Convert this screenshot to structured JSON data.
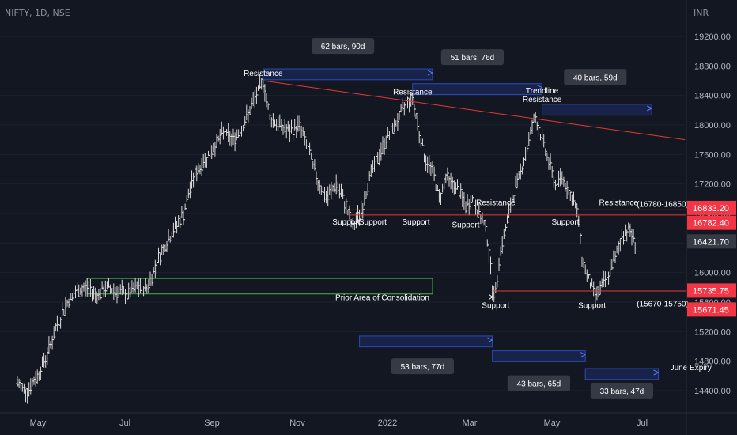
{
  "symbol": "NIFTY, 1D, NSE",
  "currency": "INR",
  "colors": {
    "background": "#131722",
    "axis_text": "#b2b5be",
    "bar": "#d9d9d9",
    "trendline": "#e53935",
    "level_line": "#e53935",
    "consolidation": "#4caf50",
    "range_box": "#2a3a8c",
    "price_tag_red": "#f23645",
    "price_tag_gray": "#363a45"
  },
  "chart_data": {
    "type": "ohlc",
    "ylim": [
      14100,
      19500
    ],
    "y_ticks": [
      "19200.00",
      "18800.00",
      "18400.00",
      "18000.00",
      "17600.00",
      "17200.00",
      "16800.00",
      "16400.00",
      "16000.00",
      "15600.00",
      "15200.00",
      "14800.00",
      "14400.00"
    ],
    "x_ticks": [
      "May",
      "Jul",
      "Sep",
      "Nov",
      "2022",
      "Mar",
      "May",
      "Jul"
    ],
    "price_path": [
      [
        0,
        14500
      ],
      [
        3,
        14400
      ],
      [
        6,
        14600
      ],
      [
        9,
        14900
      ],
      [
        12,
        15300
      ],
      [
        15,
        15600
      ],
      [
        18,
        15750
      ],
      [
        21,
        15800
      ],
      [
        24,
        15700
      ],
      [
        27,
        15800
      ],
      [
        30,
        15750
      ],
      [
        33,
        15700
      ],
      [
        36,
        15800
      ],
      [
        39,
        15800
      ],
      [
        40,
        15900
      ],
      [
        43,
        16250
      ],
      [
        46,
        16500
      ],
      [
        50,
        16800
      ],
      [
        53,
        17300
      ],
      [
        56,
        17500
      ],
      [
        59,
        17700
      ],
      [
        62,
        17900
      ],
      [
        65,
        17800
      ],
      [
        68,
        18000
      ],
      [
        70,
        18200
      ],
      [
        73,
        18500
      ],
      [
        74,
        18600
      ],
      [
        76,
        18100
      ],
      [
        79,
        18000
      ],
      [
        82,
        17900
      ],
      [
        85,
        18000
      ],
      [
        88,
        17600
      ],
      [
        90,
        17300
      ],
      [
        93,
        17000
      ],
      [
        96,
        17200
      ],
      [
        99,
        16900
      ],
      [
        101,
        16600
      ],
      [
        104,
        16900
      ],
      [
        106,
        17300
      ],
      [
        109,
        17600
      ],
      [
        112,
        17900
      ],
      [
        115,
        18100
      ],
      [
        117,
        18300
      ],
      [
        119,
        18350
      ],
      [
        121,
        17900
      ],
      [
        123,
        17500
      ],
      [
        125,
        17400
      ],
      [
        127,
        17000
      ],
      [
        129,
        17300
      ],
      [
        131,
        17200
      ],
      [
        133,
        17100
      ],
      [
        135,
        16900
      ],
      [
        137,
        17000
      ],
      [
        139,
        16800
      ],
      [
        141,
        16600
      ],
      [
        142,
        16300
      ],
      [
        143,
        15800
      ],
      [
        144,
        15700
      ],
      [
        145,
        16200
      ],
      [
        147,
        16600
      ],
      [
        149,
        17000
      ],
      [
        151,
        17300
      ],
      [
        153,
        17600
      ],
      [
        155,
        18000
      ],
      [
        156,
        18100
      ],
      [
        158,
        17800
      ],
      [
        160,
        17500
      ],
      [
        162,
        17200
      ],
      [
        164,
        17300
      ],
      [
        166,
        17100
      ],
      [
        168,
        16900
      ],
      [
        169,
        16700
      ],
      [
        170,
        16200
      ],
      [
        172,
        15900
      ],
      [
        174,
        15700
      ],
      [
        176,
        15800
      ],
      [
        178,
        16000
      ],
      [
        180,
        16200
      ],
      [
        182,
        16500
      ],
      [
        184,
        16600
      ],
      [
        185,
        16500
      ],
      [
        186,
        16421
      ]
    ],
    "trendline": {
      "from": [
        74,
        18600
      ],
      "to": [
        201,
        17800
      ],
      "label": [
        "Trendline",
        "Resistance"
      ]
    },
    "resistance_zone": {
      "range": [
        16780,
        16850
      ],
      "label": "(16780-16850)",
      "upper": "16833.20",
      "lower": "16782.40"
    },
    "support_zone": {
      "range": [
        15670,
        15750
      ],
      "label": "(15670-15750)",
      "upper": "15735.75",
      "lower": "15671.45"
    },
    "current_price": "16421.70",
    "consolidation": {
      "x_range": [
        21,
        41
      ],
      "y_range": [
        15710,
        15920
      ],
      "label": "Prior Area of Consolidation",
      "extends_to": 125
    },
    "annotations": [
      {
        "text": "Resistance",
        "x": 74,
        "y": 18600,
        "anchor": "above"
      },
      {
        "text": "Resistance",
        "x": 119,
        "y": 18350,
        "anchor": "above"
      },
      {
        "text": "Resistance",
        "x": 144,
        "y": 16850,
        "anchor": "above"
      },
      {
        "text": "Resistance",
        "x": 181,
        "y": 16850,
        "anchor": "above"
      },
      {
        "text": "Support",
        "x": 99,
        "y": 16800,
        "anchor": "below"
      },
      {
        "text": "Support",
        "x": 107,
        "y": 16800,
        "anchor": "below"
      },
      {
        "text": "Support",
        "x": 120,
        "y": 16800,
        "anchor": "below"
      },
      {
        "text": "Support",
        "x": 135,
        "y": 16760,
        "anchor": "below"
      },
      {
        "text": "Support",
        "x": 165,
        "y": 16800,
        "anchor": "below"
      },
      {
        "text": "Support",
        "x": 144,
        "y": 15670,
        "anchor": "below"
      },
      {
        "text": "Support",
        "x": 173,
        "y": 15670,
        "anchor": "below"
      }
    ],
    "range_boxes": [
      {
        "from": [
          74,
          18760
        ],
        "to": [
          125,
          18720
        ],
        "label": "62 bars, 90d",
        "label_at": [
          98,
          19060
        ]
      },
      {
        "from": [
          119,
          18560
        ],
        "to": [
          158,
          18520
        ],
        "label": "51 bars, 76d",
        "label_at": [
          137,
          18910
        ]
      },
      {
        "from": [
          158,
          18280
        ],
        "to": [
          191,
          18240
        ],
        "label": "40 bars, 59d",
        "label_at": [
          174,
          18640
        ]
      },
      {
        "from": [
          103,
          15140
        ],
        "to": [
          143,
          15100
        ],
        "label": "53 bars, 77d",
        "label_at": [
          122,
          14720
        ]
      },
      {
        "from": [
          143,
          14940
        ],
        "to": [
          171,
          14900
        ],
        "label": "43 bars, 65d",
        "label_at": [
          157,
          14490
        ]
      },
      {
        "from": [
          171,
          14700
        ],
        "to": [
          193,
          14660
        ],
        "label": "33 bars, 47d",
        "label_at": [
          182,
          14390
        ]
      }
    ],
    "extra_labels": [
      {
        "text": "June Expiry",
        "x": 198,
        "y": 14680
      }
    ]
  }
}
